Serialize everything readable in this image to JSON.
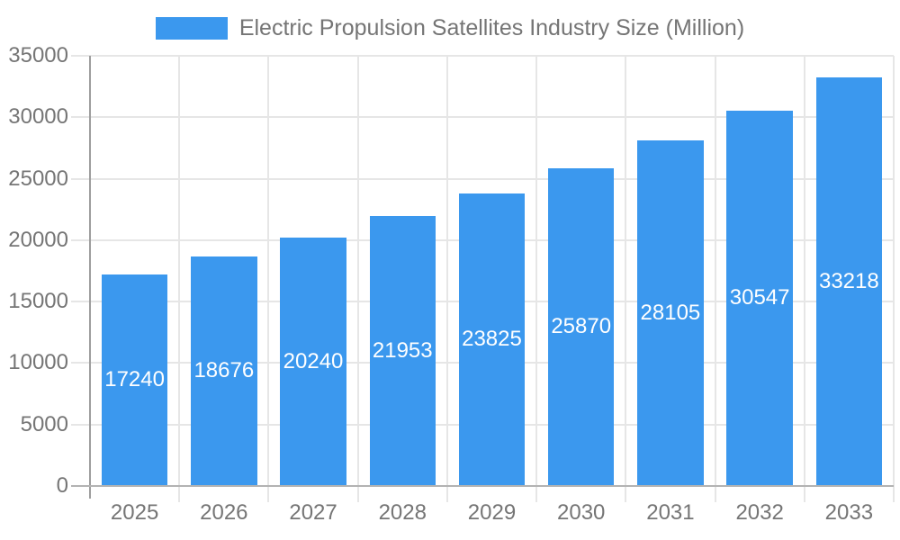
{
  "chart_data": {
    "type": "bar",
    "title": "Electric Propulsion Satellites Industry Size (Million)",
    "categories": [
      "2025",
      "2026",
      "2027",
      "2028",
      "2029",
      "2030",
      "2031",
      "2032",
      "2033"
    ],
    "values": [
      17240,
      18676,
      20240,
      21953,
      23825,
      25870,
      28105,
      30547,
      33218
    ],
    "value_labels": [
      "17240",
      "18676",
      "20240",
      "21953",
      "23825",
      "25870",
      "28105",
      "30547",
      "33218"
    ],
    "xlabel": "",
    "ylabel": "",
    "ylim": [
      0,
      35000
    ],
    "ytick_step": 5000,
    "yticks": [
      "0",
      "5000",
      "10000",
      "15000",
      "20000",
      "25000",
      "30000",
      "35000"
    ],
    "grid": true,
    "legend_position": "top",
    "colors": {
      "bar": "#3B98EE",
      "bar_value_label": "#FFFFFF",
      "gridline": "#E6E6E6",
      "axis_line": "#9E9E9E",
      "baseline": "#B3B3B3",
      "tick_text": "#757575",
      "legend_text": "#757575",
      "background": "#FFFFFF"
    }
  }
}
